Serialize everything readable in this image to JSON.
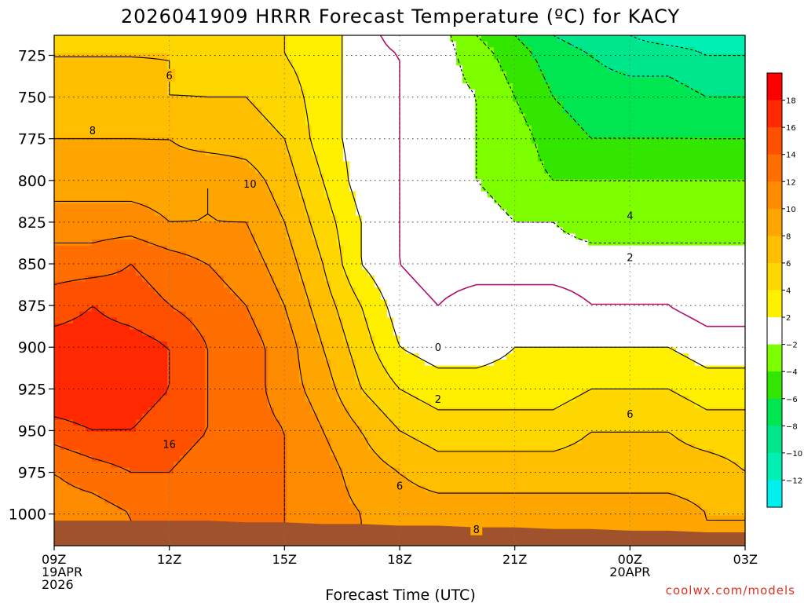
{
  "chart_data": {
    "type": "heatmap",
    "title": "2026041909 HRRR Forecast Temperature (ºC) for KACY",
    "xlabel": "Forecast Time (UTC)",
    "ylabel": "",
    "x_ticks": [
      {
        "label": "09Z",
        "sub": [
          "19APR",
          "2026"
        ],
        "hour": 0
      },
      {
        "label": "12Z",
        "sub": [],
        "hour": 3
      },
      {
        "label": "15Z",
        "sub": [],
        "hour": 6
      },
      {
        "label": "18Z",
        "sub": [],
        "hour": 9
      },
      {
        "label": "21Z",
        "sub": [],
        "hour": 12
      },
      {
        "label": "00Z",
        "sub": [
          "20APR"
        ],
        "hour": 15
      },
      {
        "label": "03Z",
        "sub": [],
        "hour": 18
      }
    ],
    "xlim": [
      0,
      18
    ],
    "y_ticks": [
      725,
      750,
      775,
      800,
      825,
      850,
      875,
      900,
      925,
      950,
      975,
      1000
    ],
    "ylim": [
      713,
      1019
    ],
    "ground_color": "#a0522d",
    "surface_pressure": [
      1004,
      1004,
      1004,
      1004,
      1004,
      1005,
      1005,
      1006,
      1006,
      1007,
      1007,
      1008,
      1008,
      1009,
      1009,
      1010,
      1010,
      1011,
      1011
    ],
    "levels": [
      713,
      725,
      750,
      775,
      800,
      825,
      850,
      875,
      900,
      925,
      950,
      975,
      1000,
      1019
    ],
    "hours": [
      0,
      1,
      2,
      3,
      4,
      5,
      6,
      7,
      8,
      9,
      10,
      11,
      12,
      13,
      14,
      15,
      16,
      17,
      18
    ],
    "temperature_grid": [
      [
        5,
        5,
        5,
        5,
        5,
        5,
        4,
        3,
        1,
        -1,
        -1,
        -4,
        -6,
        -8,
        -9,
        -10,
        -11,
        -11,
        -11
      ],
      [
        6,
        6,
        6,
        6,
        5,
        5,
        4,
        3,
        1,
        0,
        -1,
        -3,
        -5,
        -7,
        -8,
        -9,
        -9,
        -10,
        -10
      ],
      [
        7,
        7,
        7,
        6,
        6,
        6,
        5,
        3,
        1,
        0,
        -1,
        -2,
        -4,
        -6,
        -7,
        -7,
        -7,
        -8,
        -8
      ],
      [
        8,
        8,
        8,
        8,
        7,
        7,
        6,
        3,
        1,
        0,
        -1,
        -2,
        -3,
        -5,
        -6,
        -6,
        -6,
        -6,
        -6
      ],
      [
        9,
        9,
        9,
        9,
        10,
        9,
        7,
        4,
        1,
        0,
        -1,
        -2,
        -3,
        -4,
        -4,
        -4,
        -4,
        -4,
        -4
      ],
      [
        11,
        11,
        11,
        10,
        10,
        10,
        8,
        5,
        2,
        0,
        -1,
        -1,
        -2,
        -2,
        -3,
        -3,
        -3,
        -3,
        -3
      ],
      [
        13,
        13,
        14,
        13,
        12,
        11,
        9,
        6,
        2,
        0,
        -1,
        -1,
        -1,
        -1,
        -1,
        -1,
        -1,
        -1,
        -1
      ],
      [
        15,
        16,
        15,
        14,
        13,
        12,
        10,
        7,
        4,
        1,
        0,
        1,
        1,
        1,
        0,
        0,
        0,
        -1,
        -1
      ],
      [
        17,
        17,
        17,
        16,
        14,
        13,
        11,
        8,
        5,
        2,
        1,
        1,
        2,
        2,
        2,
        2,
        2,
        1,
        1
      ],
      [
        18,
        18,
        17,
        16,
        14,
        13,
        11,
        9,
        6,
        4,
        3,
        3,
        3,
        3,
        4,
        4,
        4,
        3,
        3
      ],
      [
        15,
        16,
        16,
        15,
        14,
        13,
        12,
        10,
        8,
        6,
        5,
        5,
        5,
        5,
        6,
        6,
        6,
        5,
        5
      ],
      [
        12,
        13,
        14,
        14,
        13,
        13,
        12,
        11,
        9,
        8,
        7,
        7,
        7,
        7,
        7,
        7,
        7,
        7,
        6
      ],
      [
        11,
        11,
        12,
        13,
        13,
        12,
        12,
        11,
        10,
        9,
        9,
        9,
        9,
        9,
        9,
        9,
        9,
        8,
        8
      ],
      [
        11,
        11,
        12,
        13,
        13,
        12,
        12,
        11,
        10,
        9,
        9,
        9,
        9,
        9,
        9,
        9,
        9,
        8,
        8
      ]
    ],
    "contour_labels": [
      {
        "text": "6",
        "hour": 3.0,
        "p": 737
      },
      {
        "text": "8",
        "hour": 1.0,
        "p": 770
      },
      {
        "text": "10",
        "hour": 5.1,
        "p": 802
      },
      {
        "text": "16",
        "hour": 3.0,
        "p": 958
      },
      {
        "text": "0",
        "hour": 10.0,
        "p": 900
      },
      {
        "text": "2",
        "hour": 10.0,
        "p": 931
      },
      {
        "text": "6",
        "hour": 9.0,
        "p": 983
      },
      {
        "text": "8",
        "hour": 11.0,
        "p": 1009
      },
      {
        "text": "6",
        "hour": 15.0,
        "p": 940
      },
      {
        "text": "4",
        "hour": 15.0,
        "p": 821
      },
      {
        "text": "2",
        "hour": 15.0,
        "p": 846
      }
    ],
    "colorbar": {
      "ticks": [
        "18",
        "16",
        "14",
        "12",
        "10",
        "8",
        "6",
        "4",
        "2",
        "−2",
        "−4",
        "−6",
        "−8",
        "−10",
        "−12"
      ],
      "bins": [
        {
          "min": 18,
          "max": 20,
          "color": "#ff0000"
        },
        {
          "min": 16,
          "max": 18,
          "color": "#ff2800"
        },
        {
          "min": 14,
          "max": 16,
          "color": "#ff5000"
        },
        {
          "min": 12,
          "max": 14,
          "color": "#ff6e00"
        },
        {
          "min": 10,
          "max": 12,
          "color": "#ff8c00"
        },
        {
          "min": 8,
          "max": 10,
          "color": "#ffa500"
        },
        {
          "min": 6,
          "max": 8,
          "color": "#ffbe00"
        },
        {
          "min": 4,
          "max": 6,
          "color": "#ffd700"
        },
        {
          "min": 2,
          "max": 4,
          "color": "#fff000"
        },
        {
          "min": -2,
          "max": 2,
          "color": "#ffffff"
        },
        {
          "min": -4,
          "max": -2,
          "color": "#7dff00"
        },
        {
          "min": -6,
          "max": -4,
          "color": "#32e600"
        },
        {
          "min": -8,
          "max": -6,
          "color": "#00e650"
        },
        {
          "min": -10,
          "max": -8,
          "color": "#00e68c"
        },
        {
          "min": -12,
          "max": -10,
          "color": "#00f0b4"
        },
        {
          "min": -14,
          "max": -12,
          "color": "#00f0f0"
        }
      ]
    }
  },
  "watermark": "coolwx.com/models"
}
